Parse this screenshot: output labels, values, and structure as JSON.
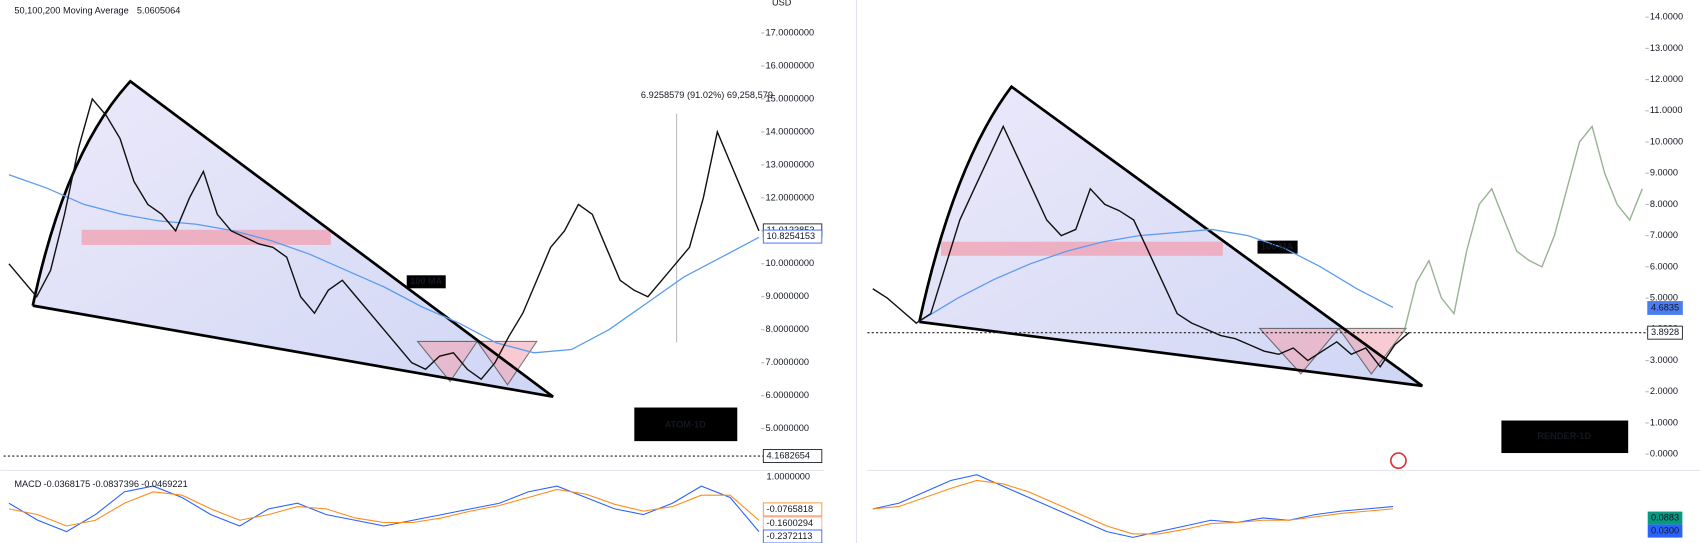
{
  "chart_data": [
    {
      "type": "line",
      "symbol": "ATOM-1D",
      "currency": "USD",
      "indicator": "50,100,200 Moving Average",
      "indicator_value": 5.0605064,
      "values": [
        10.0,
        9.5,
        9.0,
        9.8,
        11.5,
        13.5,
        15.0,
        14.5,
        13.8,
        12.5,
        11.8,
        11.5,
        11.0,
        12.0,
        12.8,
        11.5,
        11.0,
        10.8,
        10.6,
        10.5,
        10.2,
        9.0,
        8.5,
        9.2,
        9.5,
        9.0,
        8.5,
        8.0,
        7.5,
        7.0,
        6.8,
        7.2,
        7.3,
        6.8,
        6.5,
        7.0,
        7.8,
        8.5,
        9.5,
        10.5,
        11.0,
        11.8,
        11.5,
        10.5,
        9.5,
        9.2,
        9.0,
        9.5,
        10.0,
        10.5,
        12.0,
        14.0,
        13.0,
        12.0,
        11.0
      ],
      "ma_label": "100 MA",
      "ma_values": [
        12.7,
        12.3,
        11.8,
        11.5,
        11.3,
        11.2,
        11.0,
        10.7,
        10.3,
        9.8,
        9.3,
        8.7,
        8.2,
        7.6,
        7.3,
        7.4,
        8.0,
        8.8,
        9.6,
        10.2,
        10.8
      ],
      "ylim": [
        3.8,
        18
      ],
      "yticks": [
        {
          "value": 5,
          "label": "5.0000000"
        },
        {
          "value": 6,
          "label": "6.0000000"
        },
        {
          "value": 7,
          "label": "7.0000000"
        },
        {
          "value": 8,
          "label": "8.0000000"
        },
        {
          "value": 9,
          "label": "9.0000000"
        },
        {
          "value": 10,
          "label": "10.0000000"
        },
        {
          "value": 11,
          "label": "11.0000000"
        },
        {
          "value": 12,
          "label": "12.0000000"
        },
        {
          "value": 13,
          "label": "13.0000000"
        },
        {
          "value": 14,
          "label": "14.0000000"
        },
        {
          "value": 15,
          "label": "15.0000000"
        },
        {
          "value": 16,
          "label": "16.0000000"
        },
        {
          "value": 17,
          "label": "17.0000000"
        }
      ],
      "price_tags": [
        11.0123853,
        10.8254153,
        4.1682654
      ],
      "annotation": "6.9258579 (91.02%) 69,258,579",
      "macd_label": "MACD",
      "macd_header": [
        -0.0368175,
        -0.0837396,
        -0.0469221
      ],
      "macd_tags": [
        {
          "value": 1,
          "label": "1.0000000"
        },
        -0.0765818,
        -0.1600294,
        -0.2372113
      ],
      "macd_ylim": [
        -0.3,
        0.3
      ],
      "macd": [
        0.05,
        -0.1,
        -0.2,
        -0.05,
        0.15,
        0.2,
        0.1,
        -0.05,
        -0.15,
        0.0,
        0.05,
        -0.05,
        -0.1,
        -0.15,
        -0.1,
        -0.05,
        0.0,
        0.05,
        0.15,
        0.2,
        0.1,
        0.0,
        -0.05,
        0.05,
        0.2,
        0.1,
        -0.2
      ],
      "signal": [
        0.0,
        -0.05,
        -0.15,
        -0.1,
        0.05,
        0.15,
        0.12,
        0.0,
        -0.1,
        -0.05,
        0.02,
        0.0,
        -0.08,
        -0.12,
        -0.12,
        -0.08,
        -0.02,
        0.03,
        0.1,
        0.17,
        0.13,
        0.04,
        -0.02,
        0.02,
        0.12,
        0.12,
        -0.1
      ]
    },
    {
      "type": "line",
      "symbol": "RENDER-1D",
      "values": [
        5.3,
        5.0,
        4.6,
        4.2,
        4.5,
        6.0,
        7.5,
        8.5,
        9.5,
        10.5,
        9.5,
        8.5,
        7.5,
        7.0,
        7.2,
        8.5,
        8.0,
        7.8,
        7.5,
        6.5,
        5.5,
        4.5,
        4.2,
        4.0,
        3.8,
        3.7,
        3.5,
        3.3,
        3.2,
        3.4,
        3.0,
        3.3,
        3.6,
        3.2,
        3.4,
        2.8,
        3.5,
        3.9
      ],
      "projection_values": [
        3.9,
        5.5,
        6.2,
        5.0,
        4.5,
        6.5,
        8.0,
        8.5,
        7.5,
        6.5,
        6.2,
        6.0,
        7.0,
        8.5,
        10.0,
        10.5,
        9.0,
        8.0,
        7.5,
        8.5
      ],
      "ma_label": "100 MA",
      "ma_values": [
        4.3,
        5.0,
        5.6,
        6.1,
        6.5,
        6.8,
        7.0,
        7.1,
        7.2,
        7.0,
        6.6,
        6.0,
        5.3,
        4.7
      ],
      "ylim": [
        -0.45,
        14.55
      ],
      "yticks": [
        {
          "value": 0,
          "label": "0.0000"
        },
        {
          "value": 1,
          "label": "1.0000"
        },
        {
          "value": 2,
          "label": "2.0000"
        },
        {
          "value": 3,
          "label": "3.0000"
        },
        {
          "value": 4,
          "label": "4.0000"
        },
        {
          "value": 5,
          "label": "5.0000"
        },
        {
          "value": 6,
          "label": "6.0000"
        },
        {
          "value": 7,
          "label": "7.0000"
        },
        {
          "value": 8,
          "label": "8.0000"
        },
        {
          "value": 9,
          "label": "9.0000"
        },
        {
          "value": 10,
          "label": "10.0000"
        },
        {
          "value": 11,
          "label": "11.0000"
        },
        {
          "value": 12,
          "label": "12.0000"
        },
        {
          "value": 13,
          "label": "13.0000"
        },
        {
          "value": 14,
          "label": "14.0000"
        }
      ],
      "price_tags": [
        4.6835,
        3.8928
      ],
      "macd_tags": [
        0.0883,
        {
          "value": 0.03,
          "label": "0.0300"
        }
      ],
      "macd_ylim": [
        -0.3,
        0.3
      ],
      "macd": [
        0.0,
        0.05,
        0.15,
        0.25,
        0.3,
        0.2,
        0.1,
        0.0,
        -0.1,
        -0.2,
        -0.25,
        -0.2,
        -0.15,
        -0.1,
        -0.12,
        -0.08,
        -0.1,
        -0.05,
        -0.02,
        0.0,
        0.02
      ],
      "signal": [
        0.0,
        0.02,
        0.1,
        0.18,
        0.25,
        0.22,
        0.15,
        0.05,
        -0.05,
        -0.15,
        -0.22,
        -0.22,
        -0.18,
        -0.13,
        -0.12,
        -0.1,
        -0.1,
        -0.07,
        -0.04,
        -0.02,
        0.0
      ]
    }
  ]
}
